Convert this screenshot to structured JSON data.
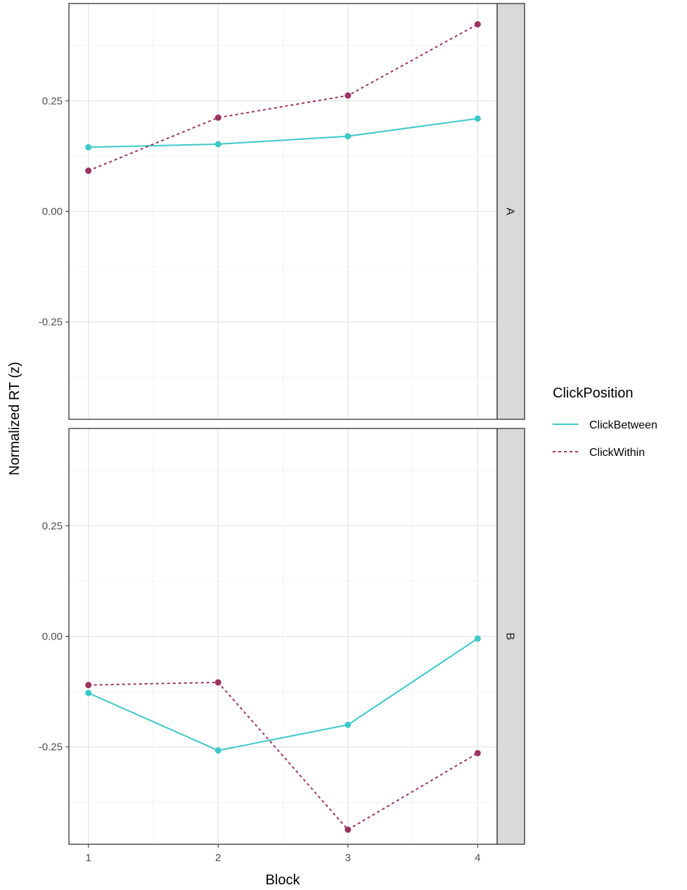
{
  "chart_data": {
    "type": "line",
    "xlabel": "Block",
    "ylabel": "Normalized RT (z)",
    "x": [
      1,
      2,
      3,
      4
    ],
    "x_ticks": [
      "1",
      "2",
      "3",
      "4"
    ],
    "y_ticks": [
      "-0.25",
      "0.00",
      "0.25"
    ],
    "ylim": [
      -0.47,
      0.47
    ],
    "xlim": [
      0.85,
      4.15
    ],
    "grid": true,
    "legend": {
      "title": "ClickPosition",
      "placement": "right",
      "entries": [
        "ClickBetween",
        "ClickWithin"
      ]
    },
    "facets": [
      {
        "label": "A",
        "series": [
          {
            "name": "ClickBetween",
            "values": [
              0.145,
              0.152,
              0.17,
              0.21
            ],
            "color": "#3cc8c8",
            "linetype": "solid"
          },
          {
            "name": "ClickWithin",
            "values": [
              0.092,
              0.212,
              0.262,
              0.423
            ],
            "color": "#9b3461",
            "linetype": "dashed"
          }
        ]
      },
      {
        "label": "B",
        "series": [
          {
            "name": "ClickBetween",
            "values": [
              -0.128,
              -0.258,
              -0.2,
              -0.005
            ],
            "color": "#3cc8c8",
            "linetype": "solid"
          },
          {
            "name": "ClickWithin",
            "values": [
              -0.11,
              -0.104,
              -0.437,
              -0.264
            ],
            "color": "#9b3461",
            "linetype": "dashed"
          }
        ]
      }
    ]
  }
}
